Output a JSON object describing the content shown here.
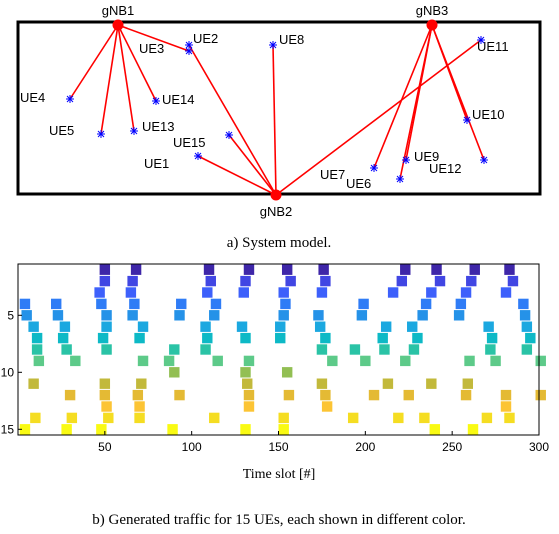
{
  "chart_data": [
    {
      "type": "scatter",
      "caption": "a) System model.",
      "base_stations": [
        {
          "name": "gNB1",
          "x": 118,
          "y": 25
        },
        {
          "name": "gNB3",
          "x": 432,
          "y": 25
        },
        {
          "name": "gNB2",
          "x": 276,
          "y": 195
        }
      ],
      "users": [
        {
          "name": "UE1",
          "x": 198,
          "y": 156,
          "bs": "gNB2"
        },
        {
          "name": "UE2",
          "x": 189,
          "y": 45,
          "bs": "gNB2"
        },
        {
          "name": "UE3",
          "x": 189,
          "y": 51,
          "bs": "gNB1"
        },
        {
          "name": "UE4",
          "x": 70,
          "y": 99,
          "bs": "gNB1"
        },
        {
          "name": "UE5",
          "x": 101,
          "y": 134,
          "bs": "gNB1"
        },
        {
          "name": "UE6",
          "x": 400,
          "y": 179,
          "bs": "gNB3"
        },
        {
          "name": "UE7",
          "x": 374,
          "y": 168,
          "bs": "gNB3"
        },
        {
          "name": "UE8",
          "x": 273,
          "y": 45,
          "bs": "gNB2"
        },
        {
          "name": "UE9",
          "x": 406,
          "y": 160,
          "bs": "gNB3"
        },
        {
          "name": "UE10",
          "x": 467,
          "y": 120,
          "bs": "gNB3"
        },
        {
          "name": "UE11",
          "x": 481,
          "y": 40,
          "bs": "gNB2"
        },
        {
          "name": "UE12",
          "x": 484,
          "y": 160,
          "bs": "gNB3"
        },
        {
          "name": "UE13",
          "x": 134,
          "y": 131,
          "bs": "gNB1"
        },
        {
          "name": "UE14",
          "x": 156,
          "y": 101,
          "bs": "gNB1"
        },
        {
          "name": "UE15",
          "x": 229,
          "y": 135,
          "bs": "gNB2"
        }
      ],
      "colors": {
        "link": "#ff0000",
        "base_station": "#ff0000",
        "user": "#0000ff"
      }
    },
    {
      "type": "heatmap",
      "caption": "b) Generated traffic for 15 UEs, each shown in different color.",
      "xlabel": "Time slot [#]",
      "ylabel": "",
      "xlim": [
        0,
        300
      ],
      "ylim": [
        15,
        1
      ],
      "xticks": [
        50,
        100,
        150,
        200,
        250,
        300
      ],
      "yticks": [
        5,
        10,
        15
      ],
      "ytick_labels": [
        "5",
        "10",
        "15"
      ],
      "grid": false,
      "rows": [
        {
          "ue": 1,
          "color": "#3e26a8",
          "x": [
            47,
            65,
            107,
            130,
            152,
            173,
            220,
            238,
            260,
            280
          ]
        },
        {
          "ue": 2,
          "color": "#4146e3",
          "x": [
            47,
            63,
            108,
            128,
            154,
            174,
            218,
            240,
            258,
            282
          ]
        },
        {
          "ue": 3,
          "color": "#3d60fb",
          "x": [
            44,
            62,
            106,
            127,
            150,
            172,
            213,
            235,
            255,
            278
          ]
        },
        {
          "ue": 4,
          "color": "#2f7cf6",
          "x": [
            1,
            19,
            45,
            64,
            91,
            111,
            151,
            196,
            232,
            252,
            288
          ]
        },
        {
          "ue": 5,
          "color": "#2592e8",
          "x": [
            2,
            20,
            48,
            63,
            90,
            110,
            150,
            170,
            195,
            230,
            251,
            289
          ]
        },
        {
          "ue": 6,
          "color": "#1ba8e0",
          "x": [
            6,
            24,
            48,
            69,
            105,
            126,
            148,
            171,
            209,
            224,
            268,
            290
          ]
        },
        {
          "ue": 7,
          "color": "#0db9c6",
          "x": [
            8,
            23,
            46,
            67,
            106,
            128,
            148,
            174,
            207,
            227,
            270,
            292
          ]
        },
        {
          "ue": 8,
          "color": "#2ac3a6",
          "x": [
            8,
            25,
            48,
            87,
            105,
            172,
            191,
            208,
            225,
            269,
            290
          ]
        },
        {
          "ue": 9,
          "color": "#5dca89",
          "x": [
            9,
            30,
            69,
            84,
            112,
            130,
            178,
            197,
            220,
            257,
            272,
            298
          ]
        },
        {
          "ue": 10,
          "color": "#92bf53",
          "x": [
            87,
            128,
            152
          ]
        },
        {
          "ue": 11,
          "color": "#c2b93b",
          "x": [
            6,
            47,
            68,
            129,
            172,
            210,
            235,
            256
          ]
        },
        {
          "ue": 12,
          "color": "#e4ba34",
          "x": [
            27,
            47,
            66,
            90,
            130,
            153,
            174,
            202,
            222,
            255,
            278,
            298
          ]
        },
        {
          "ue": 13,
          "color": "#fcc434",
          "x": [
            48,
            67,
            130,
            175,
            278
          ]
        },
        {
          "ue": 14,
          "color": "#f5dd22",
          "x": [
            7,
            28,
            49,
            67,
            110,
            150,
            190,
            216,
            231,
            267,
            280
          ]
        },
        {
          "ue": 15,
          "color": "#f9fa13",
          "x": [
            1,
            25,
            45,
            86,
            128,
            150,
            237,
            259
          ]
        }
      ],
      "block_width": 6
    }
  ]
}
